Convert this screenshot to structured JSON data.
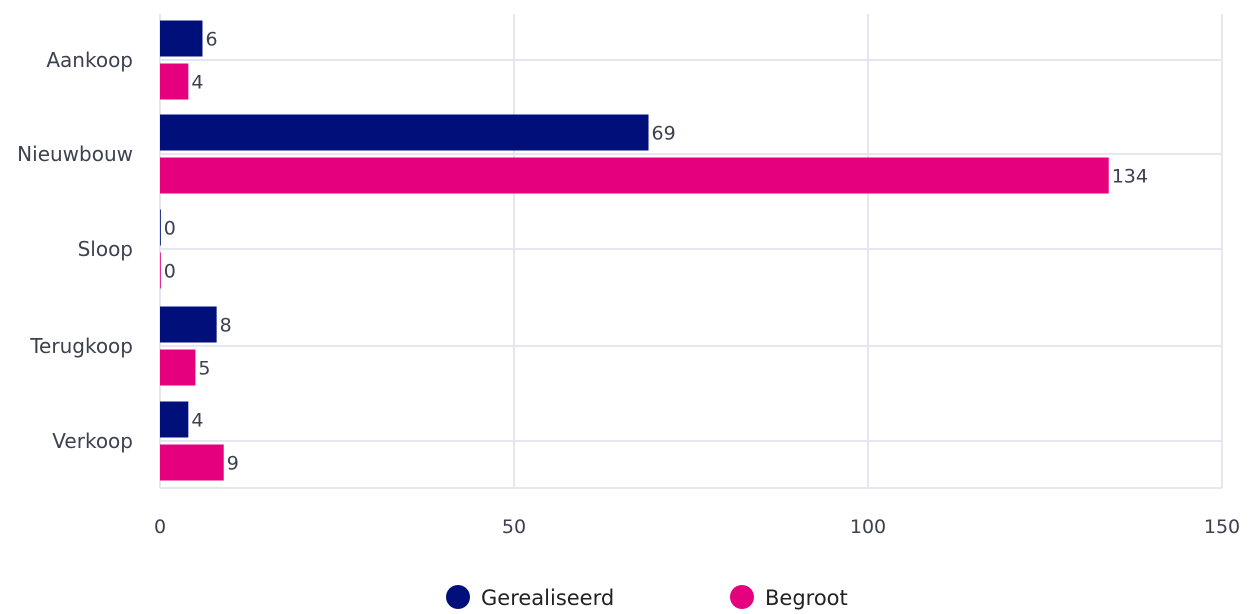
{
  "chart_data": {
    "type": "bar",
    "orientation": "horizontal",
    "categories": [
      "Aankoop",
      "Nieuwbouw",
      "Sloop",
      "Terugkoop",
      "Verkoop"
    ],
    "series": [
      {
        "name": "Gerealiseerd",
        "color": "#000f7a",
        "values": [
          6,
          69,
          0,
          8,
          4
        ]
      },
      {
        "name": "Begroot",
        "color": "#e5007e",
        "values": [
          4,
          134,
          0,
          5,
          9
        ]
      }
    ],
    "xlim": [
      0,
      150
    ],
    "xticks": [
      0,
      50,
      100,
      150
    ],
    "xtick_labels": [
      "0",
      "50",
      "100",
      "150"
    ],
    "grid": true,
    "legend_position": "bottom"
  }
}
